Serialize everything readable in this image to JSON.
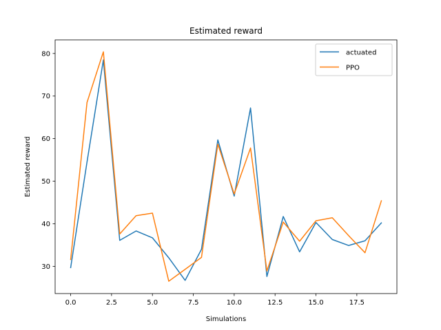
{
  "chart_data": {
    "type": "line",
    "title": "Estimated reward",
    "xlabel": "Simulations",
    "ylabel": "Estimated reward",
    "xlim": [
      -0.95,
      19.95
    ],
    "ylim": [
      23.6,
      83.2
    ],
    "xticks": [
      0.0,
      2.5,
      5.0,
      7.5,
      10.0,
      12.5,
      15.0,
      17.5
    ],
    "xtick_labels": [
      "0.0",
      "2.5",
      "5.0",
      "7.5",
      "10.0",
      "12.5",
      "15.0",
      "17.5"
    ],
    "yticks": [
      30,
      40,
      50,
      60,
      70,
      80
    ],
    "ytick_labels": [
      "30",
      "40",
      "50",
      "60",
      "70",
      "80"
    ],
    "grid": false,
    "legend_position": "top-right",
    "x": [
      0,
      1,
      2,
      3,
      4,
      5,
      6,
      7,
      8,
      9,
      10,
      11,
      12,
      13,
      14,
      15,
      16,
      17,
      18,
      19
    ],
    "series": [
      {
        "name": "actuated",
        "color": "#1f77b4",
        "values": [
          29.7,
          54.5,
          78.5,
          36.1,
          38.3,
          36.7,
          32.0,
          26.7,
          34.0,
          59.7,
          46.5,
          67.2,
          27.6,
          41.7,
          33.4,
          40.3,
          36.3,
          34.9,
          36.0,
          40.2
        ]
      },
      {
        "name": "PPO",
        "color": "#ff7f0e",
        "values": [
          31.6,
          68.5,
          80.4,
          37.6,
          41.9,
          42.5,
          26.5,
          29.3,
          32.1,
          58.7,
          47.0,
          57.8,
          28.9,
          40.4,
          35.9,
          40.7,
          41.4,
          37.2,
          33.2,
          45.4
        ]
      }
    ]
  }
}
